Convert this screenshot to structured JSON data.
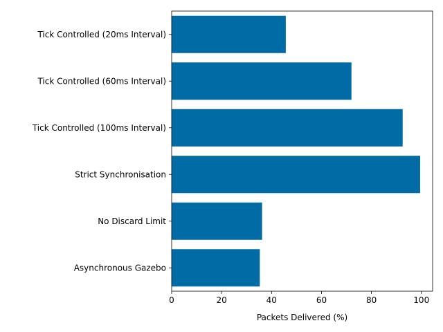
{
  "chart_data": {
    "type": "bar",
    "orientation": "horizontal",
    "categories": [
      "Tick Controlled (20ms Interval)",
      "Tick Controlled (60ms Interval)",
      "Tick Controlled (100ms Interval)",
      "Strict Synchronisation",
      "No Discard Limit",
      "Asynchronous Gazebo"
    ],
    "values": [
      45.7,
      72.0,
      92.5,
      99.5,
      36.2,
      35.3
    ],
    "title": "",
    "xlabel": "Packets Delivered (%)",
    "ylabel": "",
    "xlim": [
      0,
      104.5
    ],
    "xticks": [
      0,
      20,
      40,
      60,
      80,
      100
    ],
    "bar_color": "#006BA4",
    "grid": false,
    "legend": "none"
  }
}
